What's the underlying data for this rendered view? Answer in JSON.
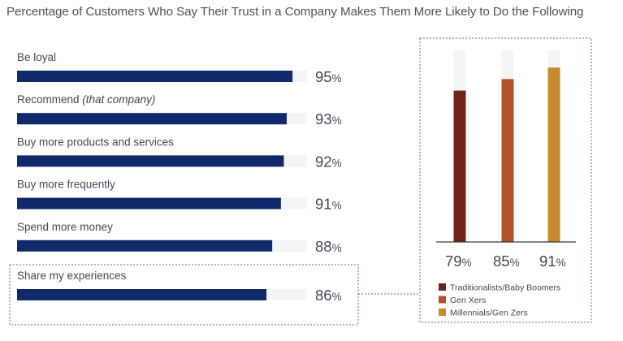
{
  "chart_data": [
    {
      "type": "bar",
      "orientation": "horizontal",
      "title": "Percentage of Customers Who Say Their Trust in a Company Makes Them More Likely to Do the Following",
      "categories": [
        "Be loyal",
        "Recommend",
        "Buy more products and services",
        "Buy more frequently",
        "Spend more money",
        "Share my experiences"
      ],
      "category_notes": [
        "",
        "(that company)",
        "",
        "",
        "",
        ""
      ],
      "values": [
        95,
        93,
        92,
        91,
        88,
        86
      ],
      "unit": "%",
      "value_labels": [
        "95",
        "93",
        "92",
        "91",
        "88",
        "86"
      ],
      "xlim": [
        0,
        100
      ],
      "highlighted_category": "Share my experiences",
      "grid": false,
      "bar_color": "#0f2a6b",
      "track_color": "#f4f4f4"
    },
    {
      "type": "bar",
      "orientation": "vertical",
      "series": [
        {
          "name": "Traditionalists/Baby Boomers",
          "values": [
            79
          ],
          "color": "#6f2517"
        },
        {
          "name": "Gen Xers",
          "values": [
            85
          ],
          "color": "#b4502a"
        },
        {
          "name": "Millennials/Gen Zers",
          "values": [
            91
          ],
          "color": "#c58a2c"
        }
      ],
      "value_labels": [
        "79",
        "85",
        "91"
      ],
      "unit": "%",
      "ylim": [
        0,
        100
      ],
      "legend_position": "bottom",
      "grid": false,
      "track_color": "#f4f4f4"
    }
  ],
  "colors": {
    "title_text": "#4a5561",
    "label_text": "#404a57",
    "axis_line": "#3a3a3a",
    "dotted_frame": "#4b7d84"
  }
}
